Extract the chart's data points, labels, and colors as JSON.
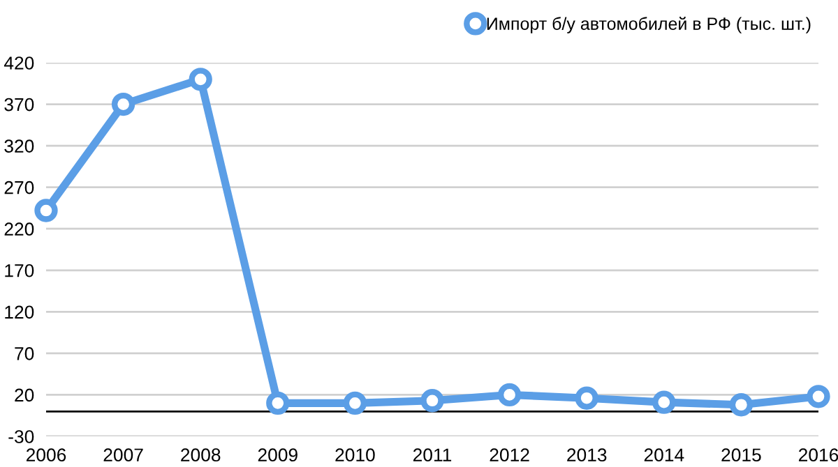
{
  "chart_data": {
    "type": "line",
    "categories": [
      "2006",
      "2007",
      "2008",
      "2009",
      "2010",
      "2011",
      "2012",
      "2013",
      "2014",
      "2015",
      "2016"
    ],
    "series": [
      {
        "name": "Импорт б/у автомобилей в РФ (тыс. шт.)",
        "color": "#5b9ee6",
        "values": [
          242,
          370,
          400,
          10,
          10,
          13,
          20,
          16,
          11,
          8,
          18
        ]
      }
    ],
    "ylim": [
      -30,
      420
    ],
    "yticks": [
      -30,
      20,
      70,
      120,
      170,
      220,
      270,
      320,
      370,
      420
    ],
    "grid": "y",
    "legend": "top right",
    "marker": "circle",
    "line_style": "solid",
    "ref_lines": [
      {
        "axis": "y",
        "value": 0,
        "color": "#000000"
      }
    ]
  }
}
